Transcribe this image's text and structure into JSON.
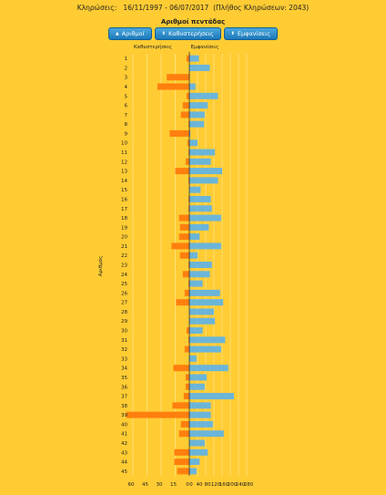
{
  "header": {
    "label": "Κληρώσεις:",
    "range": "16/11/1997 - 06/07/2017",
    "count_text": "(Πλήθος Κληρώσεων: 2043)"
  },
  "controls": {
    "sort_numbers": {
      "label": "Αριθμοί",
      "icon": "up-arrow-icon"
    },
    "sort_delays": {
      "label": "Καθυστερήσεις",
      "icon": "updown-arrow-icon"
    },
    "sort_appearances": {
      "label": "Εμφανίσεις",
      "icon": "updown-arrow-icon"
    }
  },
  "colors": {
    "delays": "#FF7F0E",
    "appearances": "#6BB5D9",
    "background": "#FFCC33",
    "button": "#1C78B8"
  },
  "chart_data": {
    "type": "bar",
    "title": "Αριθμοί πεντάδας",
    "ylabel": "Αριθμός",
    "left_header": "Καθυστερήσεις",
    "right_header": "Εμφανίσεις",
    "categories": [
      "1",
      "2",
      "3",
      "4",
      "5",
      "6",
      "7",
      "8",
      "9",
      "10",
      "11",
      "12",
      "13",
      "14",
      "15",
      "16",
      "17",
      "18",
      "19",
      "20",
      "21",
      "22",
      "23",
      "24",
      "25",
      "26",
      "27",
      "28",
      "29",
      "30",
      "31",
      "32",
      "33",
      "34",
      "35",
      "36",
      "37",
      "38",
      "39",
      "40",
      "41",
      "42",
      "43",
      "44",
      "45"
    ],
    "series": [
      {
        "name": "Καθυστερήσεις",
        "side": "left",
        "values": [
          3,
          0,
          24,
          34,
          3,
          7,
          9,
          1,
          21,
          2,
          1,
          4,
          15,
          1,
          0,
          1,
          1,
          11,
          10,
          11,
          19,
          10,
          1,
          7,
          1,
          5,
          14,
          0,
          0,
          3,
          1,
          5,
          0,
          17,
          4,
          4,
          6,
          18,
          67,
          9,
          11,
          0,
          16,
          16,
          13
        ]
      },
      {
        "name": "Εμφανίσεις",
        "side": "right",
        "values": [
          47,
          100,
          0,
          30,
          140,
          90,
          75,
          72,
          5,
          40,
          125,
          105,
          160,
          140,
          55,
          105,
          110,
          155,
          95,
          50,
          155,
          40,
          110,
          100,
          65,
          150,
          165,
          120,
          125,
          65,
          175,
          155,
          35,
          190,
          85,
          75,
          218,
          105,
          105,
          115,
          168,
          75,
          90,
          50,
          35
        ]
      }
    ],
    "left_axis": {
      "ticks": [
        60,
        45,
        30,
        15,
        0
      ],
      "max": 60
    },
    "right_axis": {
      "ticks": [
        0,
        40,
        80,
        120,
        160,
        200,
        240,
        280
      ],
      "max": 280
    },
    "tick_labels_left": [
      "60",
      "45",
      "30",
      "15",
      "0"
    ],
    "tick_labels_right": [
      "0",
      "40",
      "80",
      "120",
      "160",
      "200",
      "240",
      "280"
    ]
  }
}
